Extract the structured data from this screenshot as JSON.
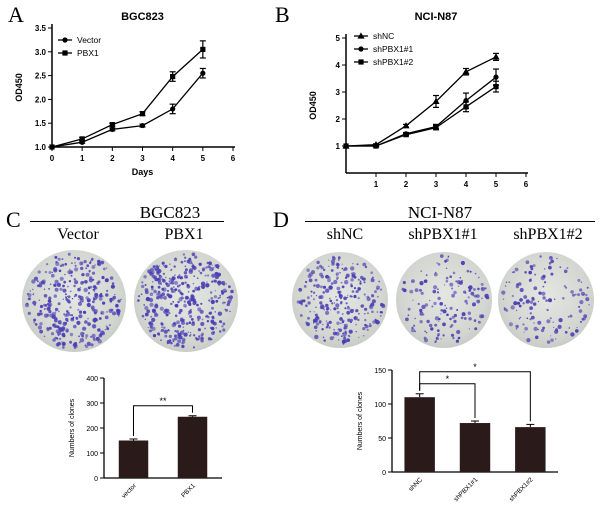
{
  "panels": {
    "A": {
      "letter": "A"
    },
    "B": {
      "letter": "B"
    },
    "C": {
      "letter": "C",
      "title": "BGC823",
      "dish_labels": [
        "Vector",
        "PBX1"
      ]
    },
    "D": {
      "letter": "D",
      "title": "NCI-N87",
      "dish_labels": [
        "shNC",
        "shPBX1#1",
        "shPBX1#2"
      ]
    }
  },
  "chart_data": [
    {
      "id": "A",
      "type": "line",
      "title": "BGC823",
      "xlabel": "Days",
      "ylabel": "OD450",
      "xlim": [
        0,
        6
      ],
      "ylim": [
        1.0,
        3.5
      ],
      "xticks": [
        "0",
        "1",
        "2",
        "3",
        "4",
        "5",
        "6"
      ],
      "yticks": [
        "1.0",
        "1.5",
        "2.0",
        "2.5",
        "3.0",
        "3.5"
      ],
      "legend": "top-left",
      "series": [
        {
          "name": "Vector",
          "marker": "circle",
          "x": [
            0,
            1,
            2,
            3,
            4,
            5
          ],
          "y": [
            1.0,
            1.1,
            1.37,
            1.45,
            1.8,
            2.55
          ],
          "err": [
            0,
            0.02,
            0.03,
            0.03,
            0.1,
            0.1
          ]
        },
        {
          "name": "PBX1",
          "marker": "square",
          "x": [
            0,
            1,
            2,
            3,
            4,
            5
          ],
          "y": [
            1.0,
            1.17,
            1.47,
            1.7,
            2.48,
            3.05
          ],
          "err": [
            0,
            0.03,
            0.03,
            0.04,
            0.1,
            0.18
          ]
        }
      ]
    },
    {
      "id": "B",
      "type": "line",
      "title": "NCI-N87",
      "xlabel": "Days",
      "ylabel": "OD450",
      "xlim": [
        0,
        6
      ],
      "ylim": [
        0,
        5
      ],
      "xticks": [
        "1",
        "2",
        "3",
        "4",
        "5",
        "6"
      ],
      "yticks": [
        "1",
        "2",
        "3",
        "4",
        "5"
      ],
      "legend": "top-left",
      "series": [
        {
          "name": "shNC",
          "marker": "triangle",
          "x": [
            0,
            1,
            2,
            3,
            4,
            5
          ],
          "y": [
            1.0,
            1.05,
            1.75,
            2.65,
            3.75,
            4.3
          ],
          "err": [
            0,
            0.03,
            0.05,
            0.22,
            0.12,
            0.13
          ]
        },
        {
          "name": "shPBX1#1",
          "marker": "circle",
          "x": [
            0,
            1,
            2,
            3,
            4,
            5
          ],
          "y": [
            1.0,
            1.0,
            1.45,
            1.72,
            2.68,
            3.55
          ],
          "err": [
            0,
            0.03,
            0.05,
            0.08,
            0.28,
            0.3
          ]
        },
        {
          "name": "shPBX1#2",
          "marker": "square",
          "x": [
            0,
            1,
            2,
            3,
            4,
            5
          ],
          "y": [
            1.0,
            1.0,
            1.42,
            1.68,
            2.45,
            3.2
          ],
          "err": [
            0,
            0.03,
            0.05,
            0.08,
            0.18,
            0.2
          ]
        }
      ]
    },
    {
      "id": "C",
      "type": "bar",
      "categories": [
        "vector",
        "PBX1"
      ],
      "values": [
        150,
        245
      ],
      "err": [
        6,
        4
      ],
      "ylabel": "Numbers of clones",
      "ylim": [
        0,
        400
      ],
      "yticks": [
        "0",
        "100",
        "200",
        "300",
        "400"
      ],
      "significance": [
        {
          "from": 0,
          "to": 1,
          "label": "**"
        }
      ]
    },
    {
      "id": "D",
      "type": "bar",
      "categories": [
        "shNC",
        "shPBX1#1",
        "shPBX1#2"
      ],
      "values": [
        110,
        72,
        66
      ],
      "err": [
        5,
        3,
        4
      ],
      "ylabel": "Numbers of clones",
      "ylim": [
        0,
        150
      ],
      "yticks": [
        "0",
        "50",
        "100",
        "150"
      ],
      "significance": [
        {
          "from": 0,
          "to": 1,
          "label": "*"
        },
        {
          "from": 0,
          "to": 2,
          "label": "*"
        }
      ]
    }
  ],
  "colors": {
    "ink": "#000000",
    "bar": "#2a1a1a",
    "colony": "#4a3fb4",
    "dish": "#d6d8d3"
  }
}
